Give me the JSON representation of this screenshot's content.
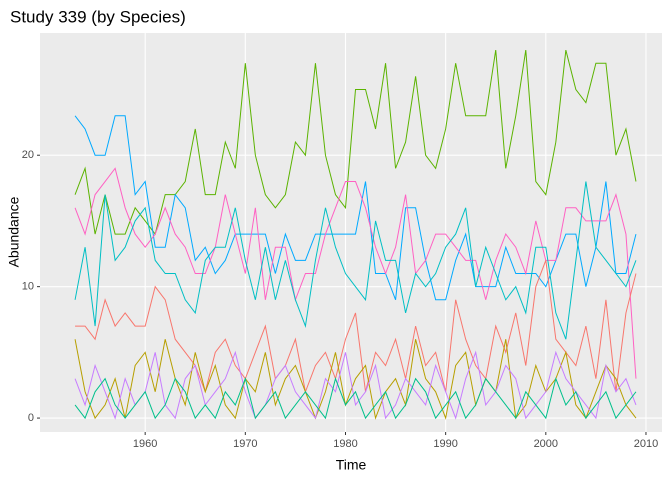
{
  "chart_data": {
    "type": "line",
    "title": "Study 339 (by Species)",
    "x_label": "Time",
    "y_label": "Abundance",
    "x": [
      1953,
      1954,
      1955,
      1956,
      1957,
      1958,
      1959,
      1960,
      1961,
      1962,
      1963,
      1964,
      1965,
      1966,
      1967,
      1968,
      1969,
      1970,
      1971,
      1972,
      1973,
      1974,
      1975,
      1976,
      1977,
      1978,
      1979,
      1980,
      1981,
      1982,
      1983,
      1984,
      1985,
      1986,
      1987,
      1988,
      1989,
      1990,
      1991,
      1992,
      1993,
      1994,
      1995,
      1996,
      1997,
      1998,
      1999,
      2000,
      2001,
      2002,
      2003,
      2004,
      2005,
      2006,
      2007,
      2008,
      2009
    ],
    "series": [
      {
        "color": "#5bb300",
        "values": [
          17,
          19,
          14,
          17,
          14,
          14,
          16,
          15,
          14,
          17,
          17,
          18,
          22,
          17,
          17,
          21,
          19,
          27,
          20,
          17,
          16,
          17,
          21,
          20,
          27,
          20,
          17,
          16,
          25,
          25,
          22,
          27,
          19,
          21,
          26,
          20,
          19,
          22,
          27,
          23,
          23,
          23,
          28,
          19,
          23,
          28,
          18,
          17,
          21,
          28,
          25,
          24,
          27,
          27,
          20,
          22,
          18
        ]
      },
      {
        "color": "#00a9ff",
        "values": [
          23,
          22,
          20,
          20,
          23,
          23,
          17,
          18,
          13,
          13,
          17,
          16,
          12,
          13,
          11,
          12,
          14,
          14,
          14,
          14,
          11,
          14,
          12,
          12,
          14,
          14,
          14,
          14,
          14,
          18,
          11,
          11,
          9,
          16,
          16,
          12,
          9,
          9,
          12,
          14,
          10,
          10,
          10,
          13,
          11,
          11,
          11,
          10,
          12,
          14,
          14,
          10,
          13,
          18,
          11,
          11,
          14
        ]
      },
      {
        "color": "#ff61c3",
        "values": [
          16,
          14,
          17,
          18,
          19,
          16,
          14,
          13,
          14,
          16,
          14,
          13,
          11,
          11,
          13,
          17,
          14,
          11,
          16,
          9,
          13,
          13,
          9,
          11,
          11,
          14,
          16,
          18,
          18,
          16,
          13,
          11,
          13,
          17,
          11,
          12,
          14,
          14,
          13,
          12,
          12,
          9,
          12,
          14,
          13,
          11,
          15,
          12,
          12,
          16,
          16,
          15,
          15,
          15,
          17,
          14,
          3
        ]
      },
      {
        "color": "#00bfc4",
        "values": [
          9,
          13,
          7,
          17,
          12,
          13,
          15,
          16,
          12,
          11,
          11,
          9,
          8,
          12,
          13,
          13,
          16,
          12,
          9,
          13,
          9,
          12,
          9,
          7,
          12,
          16,
          13,
          11,
          10,
          9,
          15,
          12,
          12,
          8,
          11,
          10,
          11,
          13,
          14,
          16,
          10,
          13,
          11,
          9,
          10,
          8,
          13,
          13,
          8,
          6,
          12,
          18,
          13,
          12,
          11,
          10,
          12
        ]
      },
      {
        "color": "#f8766d",
        "values": [
          7,
          7,
          6,
          9,
          7,
          8,
          7,
          7,
          10,
          9,
          6,
          5,
          4,
          2,
          5,
          6,
          4,
          3,
          5,
          7,
          3,
          4,
          6,
          2,
          4,
          5,
          3,
          6,
          8,
          2,
          5,
          4,
          6,
          3,
          7,
          4,
          5,
          2,
          9,
          6,
          4,
          3,
          7,
          5,
          8,
          4,
          10,
          12,
          6,
          5,
          4,
          7,
          3,
          9,
          2,
          8,
          11
        ]
      },
      {
        "color": "#b79f00",
        "values": [
          6,
          2,
          0,
          1,
          3,
          0,
          4,
          5,
          2,
          6,
          3,
          1,
          5,
          2,
          4,
          1,
          0,
          3,
          2,
          5,
          1,
          3,
          4,
          2,
          0,
          2,
          5,
          1,
          3,
          4,
          0,
          2,
          3,
          1,
          6,
          3,
          2,
          0,
          4,
          5,
          1,
          3,
          2,
          6,
          0,
          1,
          4,
          2,
          3,
          5,
          1,
          0,
          2,
          4,
          3,
          1,
          0
        ]
      },
      {
        "color": "#c77cff",
        "values": [
          3,
          1,
          4,
          2,
          0,
          3,
          1,
          2,
          5,
          1,
          0,
          3,
          4,
          1,
          2,
          3,
          5,
          2,
          0,
          1,
          3,
          4,
          2,
          1,
          0,
          3,
          2,
          5,
          1,
          2,
          4,
          0,
          1,
          3,
          2,
          1,
          4,
          2,
          0,
          3,
          5,
          1,
          2,
          4,
          3,
          0,
          1,
          2,
          5,
          3,
          2,
          1,
          0,
          4,
          2,
          3,
          1
        ]
      },
      {
        "color": "#00c08b",
        "values": [
          1,
          0,
          2,
          3,
          1,
          0,
          1,
          2,
          0,
          1,
          3,
          2,
          0,
          1,
          0,
          2,
          1,
          3,
          0,
          1,
          2,
          0,
          1,
          2,
          1,
          0,
          3,
          1,
          2,
          0,
          1,
          2,
          0,
          1,
          3,
          2,
          0,
          1,
          2,
          0,
          1,
          3,
          2,
          1,
          0,
          2,
          1,
          0,
          3,
          1,
          2,
          0,
          1,
          2,
          0,
          1,
          2
        ]
      }
    ],
    "xlim": [
      1949.5,
      2011.6
    ],
    "xticks": [
      1960,
      1970,
      1980,
      1990,
      2000,
      2010
    ],
    "ylim": [
      -1.06,
      29.3
    ],
    "yticks": [
      0,
      10,
      20
    ],
    "grid": true
  }
}
